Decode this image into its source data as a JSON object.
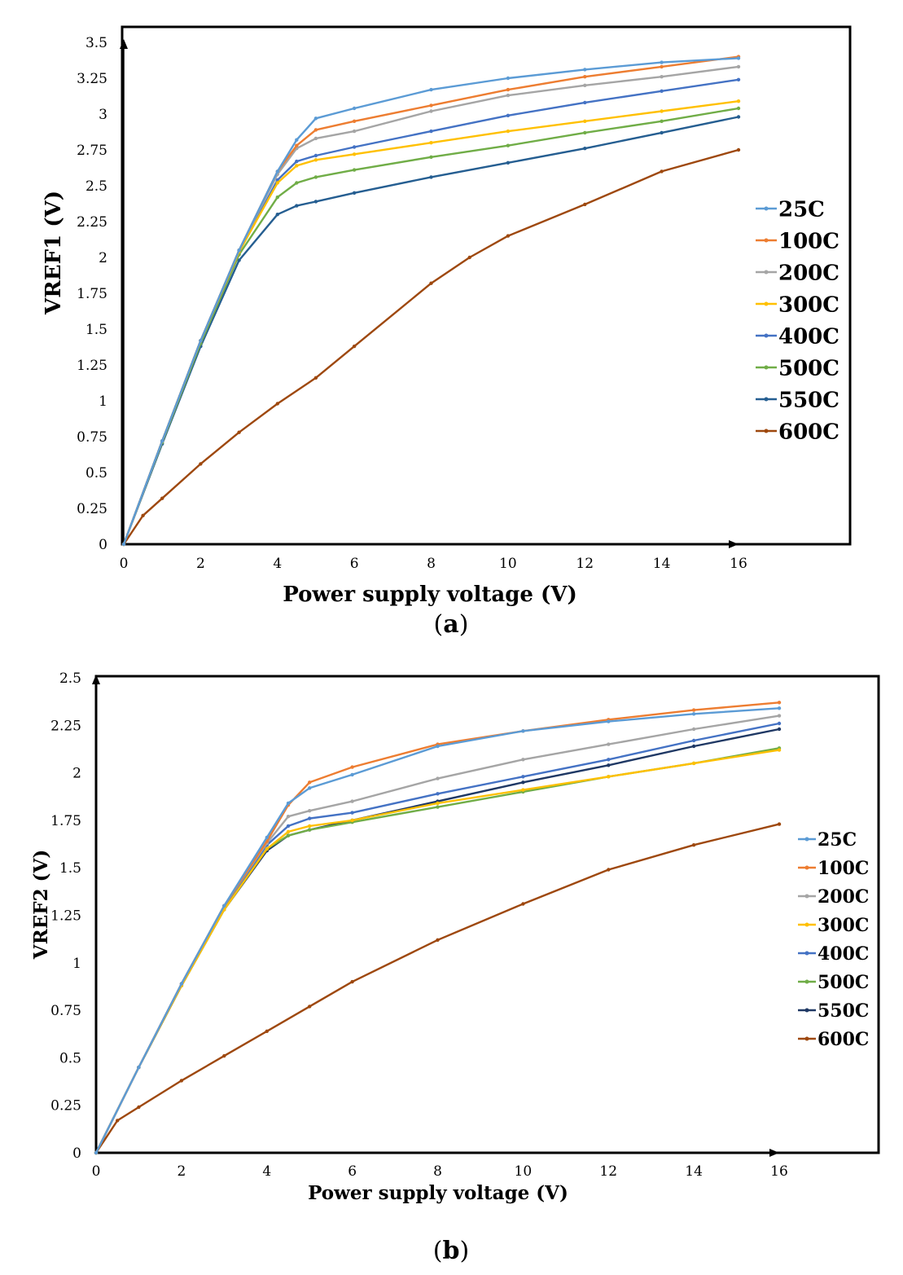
{
  "chart_data": [
    {
      "id": "a",
      "type": "line",
      "caption_letter": "a",
      "xlabel": "Power supply voltage (V)",
      "ylabel": "VREF1 (V)",
      "xlim": [
        0,
        16
      ],
      "ylim": [
        0,
        3.5
      ],
      "x_ticks": [
        "0",
        "2",
        "4",
        "6",
        "8",
        "10",
        "12",
        "14",
        "16"
      ],
      "y_ticks": [
        "0",
        "0.25",
        "0.5",
        "0.75",
        "1",
        "1.25",
        "1.5",
        "1.75",
        "2",
        "2.25",
        "2.5",
        "2.75",
        "3",
        "3.25",
        "3.5"
      ],
      "grid": false,
      "legend_position": "right",
      "series": [
        {
          "name": "25C",
          "color": "#5b9bd5",
          "points": [
            [
              0,
              0
            ],
            [
              1,
              0.72
            ],
            [
              2,
              1.42
            ],
            [
              3,
              2.05
            ],
            [
              4,
              2.6
            ],
            [
              4.5,
              2.82
            ],
            [
              5,
              2.97
            ],
            [
              6,
              3.04
            ],
            [
              8,
              3.17
            ],
            [
              10,
              3.25
            ],
            [
              12,
              3.31
            ],
            [
              14,
              3.36
            ],
            [
              16,
              3.39
            ]
          ]
        },
        {
          "name": "100C",
          "color": "#ed7d31",
          "points": [
            [
              0,
              0
            ],
            [
              1,
              0.72
            ],
            [
              2,
              1.42
            ],
            [
              3,
              2.05
            ],
            [
              4,
              2.6
            ],
            [
              4.5,
              2.78
            ],
            [
              5,
              2.89
            ],
            [
              6,
              2.95
            ],
            [
              8,
              3.06
            ],
            [
              10,
              3.17
            ],
            [
              12,
              3.26
            ],
            [
              14,
              3.33
            ],
            [
              16,
              3.4
            ]
          ]
        },
        {
          "name": "200C",
          "color": "#a5a5a5",
          "points": [
            [
              0,
              0
            ],
            [
              1,
              0.72
            ],
            [
              2,
              1.42
            ],
            [
              3,
              2.05
            ],
            [
              4,
              2.58
            ],
            [
              4.5,
              2.76
            ],
            [
              5,
              2.83
            ],
            [
              6,
              2.88
            ],
            [
              8,
              3.02
            ],
            [
              10,
              3.13
            ],
            [
              12,
              3.2
            ],
            [
              14,
              3.26
            ],
            [
              16,
              3.33
            ]
          ]
        },
        {
          "name": "300C",
          "color": "#ffc000",
          "points": [
            [
              0,
              0
            ],
            [
              1,
              0.72
            ],
            [
              2,
              1.42
            ],
            [
              3,
              2.04
            ],
            [
              4,
              2.52
            ],
            [
              4.5,
              2.64
            ],
            [
              5,
              2.68
            ],
            [
              6,
              2.72
            ],
            [
              8,
              2.8
            ],
            [
              10,
              2.88
            ],
            [
              12,
              2.95
            ],
            [
              14,
              3.02
            ],
            [
              16,
              3.09
            ]
          ]
        },
        {
          "name": "400C",
          "color": "#4472c4",
          "points": [
            [
              0,
              0
            ],
            [
              1,
              0.72
            ],
            [
              2,
              1.42
            ],
            [
              3,
              2.04
            ],
            [
              4,
              2.54
            ],
            [
              4.5,
              2.67
            ],
            [
              5,
              2.71
            ],
            [
              6,
              2.77
            ],
            [
              8,
              2.88
            ],
            [
              10,
              2.99
            ],
            [
              12,
              3.08
            ],
            [
              14,
              3.16
            ],
            [
              16,
              3.24
            ]
          ]
        },
        {
          "name": "500C",
          "color": "#70ad47",
          "points": [
            [
              0,
              0
            ],
            [
              1,
              0.71
            ],
            [
              2,
              1.4
            ],
            [
              3,
              2.02
            ],
            [
              4,
              2.42
            ],
            [
              4.5,
              2.52
            ],
            [
              5,
              2.56
            ],
            [
              6,
              2.61
            ],
            [
              8,
              2.7
            ],
            [
              10,
              2.78
            ],
            [
              12,
              2.87
            ],
            [
              14,
              2.95
            ],
            [
              16,
              3.04
            ]
          ]
        },
        {
          "name": "550C",
          "color": "#255e91",
          "points": [
            [
              0,
              0
            ],
            [
              1,
              0.7
            ],
            [
              2,
              1.38
            ],
            [
              3,
              1.98
            ],
            [
              4,
              2.3
            ],
            [
              4.5,
              2.36
            ],
            [
              5,
              2.39
            ],
            [
              6,
              2.45
            ],
            [
              8,
              2.56
            ],
            [
              10,
              2.66
            ],
            [
              12,
              2.76
            ],
            [
              14,
              2.87
            ],
            [
              16,
              2.98
            ]
          ]
        },
        {
          "name": "600C",
          "color": "#9e480e",
          "points": [
            [
              0,
              0
            ],
            [
              0.5,
              0.2
            ],
            [
              1,
              0.32
            ],
            [
              2,
              0.56
            ],
            [
              3,
              0.78
            ],
            [
              4,
              0.98
            ],
            [
              5,
              1.16
            ],
            [
              6,
              1.38
            ],
            [
              8,
              1.82
            ],
            [
              9,
              2.0
            ],
            [
              10,
              2.15
            ],
            [
              12,
              2.37
            ],
            [
              14,
              2.6
            ],
            [
              16,
              2.75
            ]
          ]
        }
      ]
    },
    {
      "id": "b",
      "type": "line",
      "caption_letter": "b",
      "xlabel": "Power supply voltage (V)",
      "ylabel": "VREF2 (V)",
      "xlim": [
        0,
        16
      ],
      "ylim": [
        0,
        2.5
      ],
      "x_ticks": [
        "0",
        "2",
        "4",
        "6",
        "8",
        "10",
        "12",
        "14",
        "16"
      ],
      "y_ticks": [
        "0",
        "0.25",
        "0.5",
        "0.75",
        "1",
        "1.25",
        "1.5",
        "1.75",
        "2",
        "2.25",
        "2.5"
      ],
      "grid": false,
      "legend_position": "right",
      "series": [
        {
          "name": "25C",
          "color": "#5b9bd5",
          "points": [
            [
              0,
              0
            ],
            [
              1,
              0.45
            ],
            [
              2,
              0.89
            ],
            [
              3,
              1.3
            ],
            [
              4,
              1.66
            ],
            [
              4.5,
              1.84
            ],
            [
              5,
              1.92
            ],
            [
              6,
              1.99
            ],
            [
              8,
              2.14
            ],
            [
              10,
              2.22
            ],
            [
              12,
              2.27
            ],
            [
              14,
              2.31
            ],
            [
              16,
              2.34
            ]
          ]
        },
        {
          "name": "100C",
          "color": "#ed7d31",
          "points": [
            [
              0,
              0
            ],
            [
              1,
              0.45
            ],
            [
              2,
              0.89
            ],
            [
              3,
              1.3
            ],
            [
              4,
              1.64
            ],
            [
              4.5,
              1.83
            ],
            [
              5,
              1.95
            ],
            [
              6,
              2.03
            ],
            [
              8,
              2.15
            ],
            [
              10,
              2.22
            ],
            [
              12,
              2.28
            ],
            [
              14,
              2.33
            ],
            [
              16,
              2.37
            ]
          ]
        },
        {
          "name": "200C",
          "color": "#a5a5a5",
          "points": [
            [
              0,
              0
            ],
            [
              1,
              0.45
            ],
            [
              2,
              0.89
            ],
            [
              3,
              1.3
            ],
            [
              4,
              1.63
            ],
            [
              4.5,
              1.77
            ],
            [
              5,
              1.8
            ],
            [
              6,
              1.85
            ],
            [
              8,
              1.97
            ],
            [
              10,
              2.07
            ],
            [
              12,
              2.15
            ],
            [
              14,
              2.23
            ],
            [
              16,
              2.3
            ]
          ]
        },
        {
          "name": "300C",
          "color": "#ffc000",
          "points": [
            [
              0,
              0
            ],
            [
              1,
              0.45
            ],
            [
              2,
              0.88
            ],
            [
              3,
              1.28
            ],
            [
              4,
              1.6
            ],
            [
              4.5,
              1.69
            ],
            [
              5,
              1.72
            ],
            [
              6,
              1.75
            ],
            [
              8,
              1.84
            ],
            [
              10,
              1.91
            ],
            [
              12,
              1.98
            ],
            [
              14,
              2.05
            ],
            [
              16,
              2.12
            ]
          ]
        },
        {
          "name": "400C",
          "color": "#4472c4",
          "points": [
            [
              0,
              0
            ],
            [
              1,
              0.45
            ],
            [
              2,
              0.88
            ],
            [
              3,
              1.29
            ],
            [
              4,
              1.62
            ],
            [
              4.5,
              1.72
            ],
            [
              5,
              1.76
            ],
            [
              6,
              1.79
            ],
            [
              8,
              1.89
            ],
            [
              10,
              1.98
            ],
            [
              12,
              2.07
            ],
            [
              14,
              2.17
            ],
            [
              16,
              2.26
            ]
          ]
        },
        {
          "name": "500C",
          "color": "#70ad47",
          "points": [
            [
              0,
              0
            ],
            [
              1,
              0.45
            ],
            [
              2,
              0.88
            ],
            [
              3,
              1.28
            ],
            [
              4,
              1.6
            ],
            [
              4.5,
              1.67
            ],
            [
              5,
              1.7
            ],
            [
              6,
              1.74
            ],
            [
              8,
              1.82
            ],
            [
              10,
              1.9
            ],
            [
              12,
              1.98
            ],
            [
              14,
              2.05
            ],
            [
              16,
              2.13
            ]
          ]
        },
        {
          "name": "550C",
          "color": "#1f3864",
          "points": [
            [
              0,
              0
            ],
            [
              1,
              0.45
            ],
            [
              2,
              0.88
            ],
            [
              3,
              1.28
            ],
            [
              4,
              1.59
            ],
            [
              4.5,
              1.67
            ],
            [
              5,
              1.7
            ],
            [
              6,
              1.75
            ],
            [
              8,
              1.85
            ],
            [
              10,
              1.95
            ],
            [
              12,
              2.04
            ],
            [
              14,
              2.14
            ],
            [
              16,
              2.23
            ]
          ]
        },
        {
          "name": "600C",
          "color": "#9e480e",
          "points": [
            [
              0,
              0
            ],
            [
              0.5,
              0.17
            ],
            [
              1,
              0.24
            ],
            [
              2,
              0.38
            ],
            [
              3,
              0.51
            ],
            [
              4,
              0.64
            ],
            [
              5,
              0.77
            ],
            [
              6,
              0.9
            ],
            [
              8,
              1.12
            ],
            [
              10,
              1.31
            ],
            [
              12,
              1.49
            ],
            [
              14,
              1.62
            ],
            [
              16,
              1.73
            ]
          ]
        }
      ]
    }
  ]
}
